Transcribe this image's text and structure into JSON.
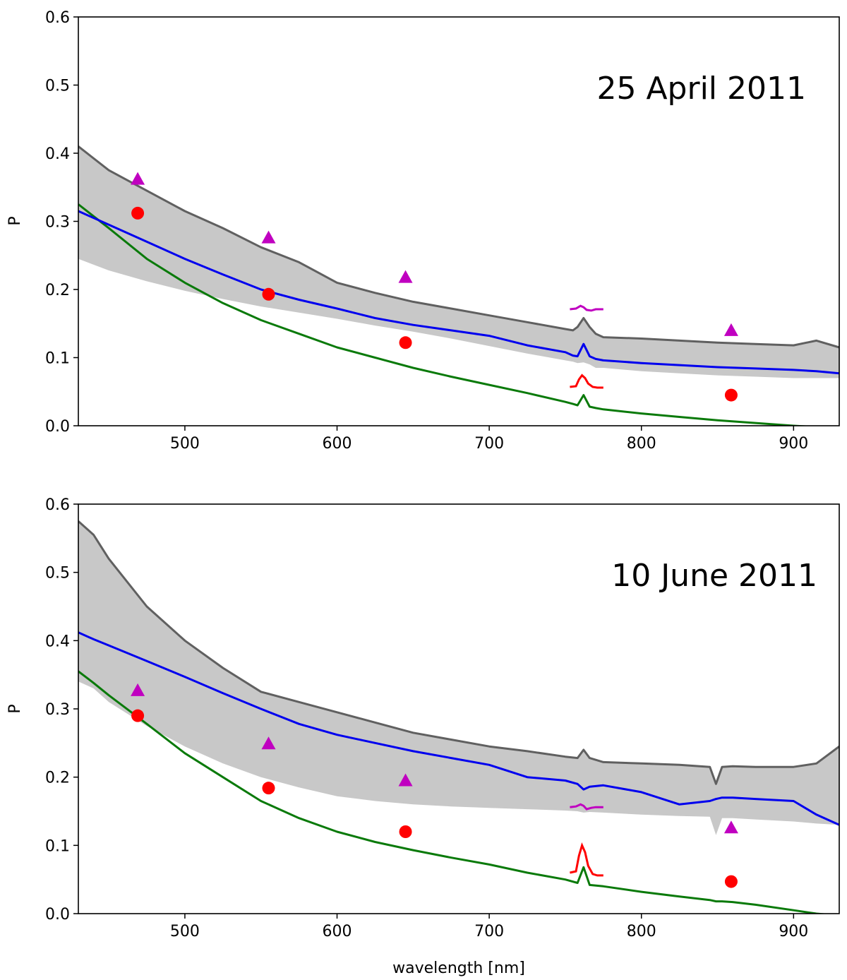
{
  "chart_data": [
    {
      "type": "line",
      "annotation": "25 April 2011",
      "xlabel": "",
      "ylabel": "P",
      "xlim": [
        430,
        930
      ],
      "ylim": [
        0.0,
        0.6
      ],
      "xticks": [
        500,
        600,
        700,
        800,
        900
      ],
      "yticks": [
        0.0,
        0.1,
        0.2,
        0.3,
        0.4,
        0.5,
        0.6
      ],
      "x": [
        430,
        450,
        475,
        500,
        525,
        550,
        575,
        600,
        625,
        650,
        675,
        700,
        725,
        750,
        755,
        758,
        762,
        766,
        770,
        775,
        800,
        825,
        850,
        875,
        900,
        915,
        930
      ],
      "series": [
        {
          "name": "band-lower",
          "color": "#c8c8c8",
          "values": [
            0.245,
            0.228,
            0.212,
            0.198,
            0.186,
            0.175,
            0.166,
            0.157,
            0.147,
            0.138,
            0.128,
            0.117,
            0.106,
            0.096,
            0.094,
            0.092,
            0.093,
            0.09,
            0.085,
            0.085,
            0.08,
            0.077,
            0.074,
            0.072,
            0.07,
            0.07,
            0.07
          ]
        },
        {
          "name": "band-upper",
          "color": "#606060",
          "values": [
            0.41,
            0.375,
            0.345,
            0.315,
            0.29,
            0.262,
            0.24,
            0.21,
            0.195,
            0.182,
            0.172,
            0.162,
            0.152,
            0.142,
            0.14,
            0.145,
            0.158,
            0.145,
            0.135,
            0.13,
            0.128,
            0.125,
            0.122,
            0.12,
            0.118,
            0.125,
            0.115
          ]
        },
        {
          "name": "model-blue",
          "color": "#0000ee",
          "values": [
            0.315,
            0.295,
            0.27,
            0.245,
            0.222,
            0.2,
            0.185,
            0.172,
            0.158,
            0.148,
            0.14,
            0.132,
            0.118,
            0.108,
            0.103,
            0.102,
            0.12,
            0.102,
            0.098,
            0.096,
            0.092,
            0.089,
            0.086,
            0.084,
            0.082,
            0.08,
            0.077
          ]
        },
        {
          "name": "model-green",
          "color": "#0a7a0a",
          "values": [
            0.325,
            0.29,
            0.245,
            0.21,
            0.18,
            0.155,
            0.135,
            0.115,
            0.1,
            0.085,
            0.072,
            0.06,
            0.048,
            0.035,
            0.032,
            0.03,
            0.045,
            0.028,
            0.026,
            0.024,
            0.018,
            0.013,
            0.008,
            0.004,
            0.0,
            -0.002,
            -0.003
          ]
        }
      ],
      "points_circle": {
        "x": [
          469,
          555,
          645,
          859
        ],
        "y": [
          0.312,
          0.193,
          0.122,
          0.045
        ],
        "color": "#ff0000"
      },
      "points_triangle": {
        "x": [
          469,
          555,
          645,
          859
        ],
        "y": [
          0.362,
          0.276,
          0.218,
          0.14
        ],
        "color": "#c000c0"
      },
      "inset_magenta": {
        "x": [
          753,
          757,
          760,
          762,
          764,
          767,
          770,
          775
        ],
        "y": [
          0.171,
          0.172,
          0.176,
          0.174,
          0.17,
          0.169,
          0.171,
          0.171
        ],
        "color": "#c000c0"
      },
      "inset_red": {
        "x": [
          753,
          757,
          759,
          761,
          763,
          765,
          768,
          771,
          775
        ],
        "y": [
          0.057,
          0.058,
          0.068,
          0.074,
          0.07,
          0.062,
          0.057,
          0.056,
          0.056
        ],
        "color": "#ff0000"
      }
    },
    {
      "type": "line",
      "annotation": "10 June 2011",
      "xlabel": "wavelength [nm]",
      "ylabel": "P",
      "xlim": [
        430,
        930
      ],
      "ylim": [
        0.0,
        0.6
      ],
      "xticks": [
        500,
        600,
        700,
        800,
        900
      ],
      "yticks": [
        0.0,
        0.1,
        0.2,
        0.3,
        0.4,
        0.5,
        0.6
      ],
      "x": [
        430,
        440,
        450,
        475,
        500,
        525,
        550,
        575,
        600,
        625,
        650,
        675,
        700,
        725,
        750,
        758,
        762,
        766,
        775,
        800,
        825,
        845,
        849,
        853,
        860,
        875,
        900,
        915,
        930
      ],
      "series": [
        {
          "name": "band-lower",
          "color": "#c8c8c8",
          "values": [
            0.34,
            0.33,
            0.31,
            0.275,
            0.245,
            0.22,
            0.2,
            0.185,
            0.172,
            0.165,
            0.16,
            0.157,
            0.155,
            0.153,
            0.151,
            0.15,
            0.148,
            0.149,
            0.148,
            0.145,
            0.143,
            0.142,
            0.115,
            0.14,
            0.14,
            0.138,
            0.135,
            0.132,
            0.13
          ]
        },
        {
          "name": "band-upper",
          "color": "#606060",
          "values": [
            0.575,
            0.555,
            0.52,
            0.45,
            0.4,
            0.36,
            0.325,
            0.31,
            0.295,
            0.28,
            0.265,
            0.255,
            0.245,
            0.238,
            0.23,
            0.228,
            0.24,
            0.228,
            0.222,
            0.22,
            0.218,
            0.215,
            0.19,
            0.215,
            0.216,
            0.215,
            0.215,
            0.22,
            0.245
          ]
        },
        {
          "name": "model-blue",
          "color": "#0000ee",
          "values": [
            0.412,
            0.402,
            0.393,
            0.37,
            0.347,
            0.323,
            0.3,
            0.278,
            0.262,
            0.25,
            0.238,
            0.228,
            0.218,
            0.2,
            0.195,
            0.19,
            0.182,
            0.186,
            0.188,
            0.178,
            0.16,
            0.165,
            0.168,
            0.17,
            0.17,
            0.168,
            0.165,
            0.145,
            0.13
          ]
        },
        {
          "name": "model-green",
          "color": "#0a7a0a",
          "values": [
            0.355,
            0.338,
            0.32,
            0.278,
            0.235,
            0.2,
            0.165,
            0.14,
            0.12,
            0.105,
            0.093,
            0.082,
            0.072,
            0.06,
            0.05,
            0.045,
            0.068,
            0.042,
            0.04,
            0.032,
            0.025,
            0.02,
            0.018,
            0.018,
            0.017,
            0.013,
            0.005,
            0.0,
            -0.003
          ]
        }
      ],
      "points_circle": {
        "x": [
          469,
          555,
          645,
          859
        ],
        "y": [
          0.29,
          0.184,
          0.12,
          0.047
        ],
        "color": "#ff0000"
      },
      "points_triangle": {
        "x": [
          469,
          555,
          645,
          859
        ],
        "y": [
          0.327,
          0.249,
          0.195,
          0.126
        ],
        "color": "#c000c0"
      },
      "inset_magenta": {
        "x": [
          753,
          757,
          760,
          762,
          764,
          767,
          770,
          775
        ],
        "y": [
          0.156,
          0.157,
          0.16,
          0.158,
          0.153,
          0.155,
          0.156,
          0.156
        ],
        "color": "#c000c0"
      },
      "inset_red": {
        "x": [
          753,
          757,
          759,
          761,
          763,
          765,
          768,
          771,
          775
        ],
        "y": [
          0.06,
          0.062,
          0.085,
          0.1,
          0.09,
          0.07,
          0.058,
          0.056,
          0.056
        ],
        "color": "#ff0000"
      }
    }
  ]
}
